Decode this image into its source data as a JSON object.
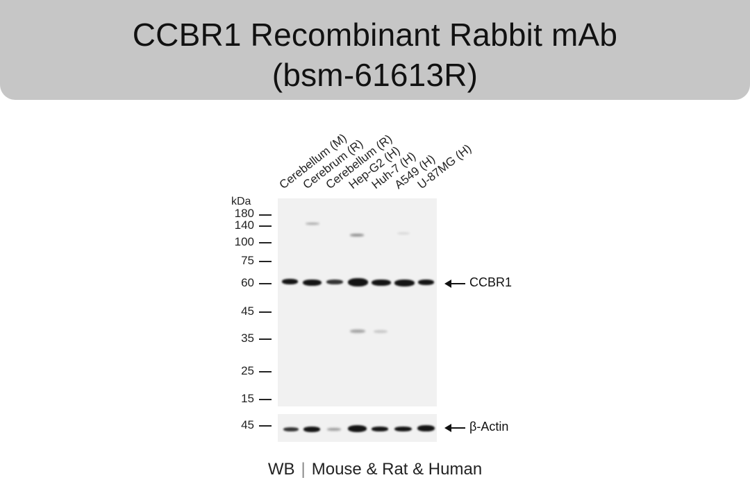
{
  "title": {
    "line1": "CCBR1 Recombinant Rabbit mAb",
    "line2": "(bsm-61613R)"
  },
  "lanes": [
    "Cerebellum (M)",
    "Cerebrum (R)",
    "Cerebellum (R)",
    "Hep-G2 (H)",
    "Huh-7 (H)",
    "A549 (H)",
    "U-87MG (H)"
  ],
  "kda_label": "kDa",
  "markers": [
    {
      "label": "180",
      "kda": 180
    },
    {
      "label": "140",
      "kda": 140
    },
    {
      "label": "100",
      "kda": 100
    },
    {
      "label": "75",
      "kda": 75
    },
    {
      "label": "60",
      "kda": 60
    },
    {
      "label": "45",
      "kda": 45
    },
    {
      "label": "35",
      "kda": 35
    },
    {
      "label": "25",
      "kda": 25
    },
    {
      "label": "15",
      "kda": 15
    }
  ],
  "loading_control_marker": {
    "label": "45",
    "kda": 45
  },
  "targets": {
    "main": "CCBR1",
    "loading_control": "β-Actin"
  },
  "footer": {
    "method": "WB",
    "species": "Mouse & Rat & Human"
  },
  "colors": {
    "header_bg": "#c6c6c6",
    "blot_bg": "#f1f1f1",
    "band": "#141414"
  }
}
